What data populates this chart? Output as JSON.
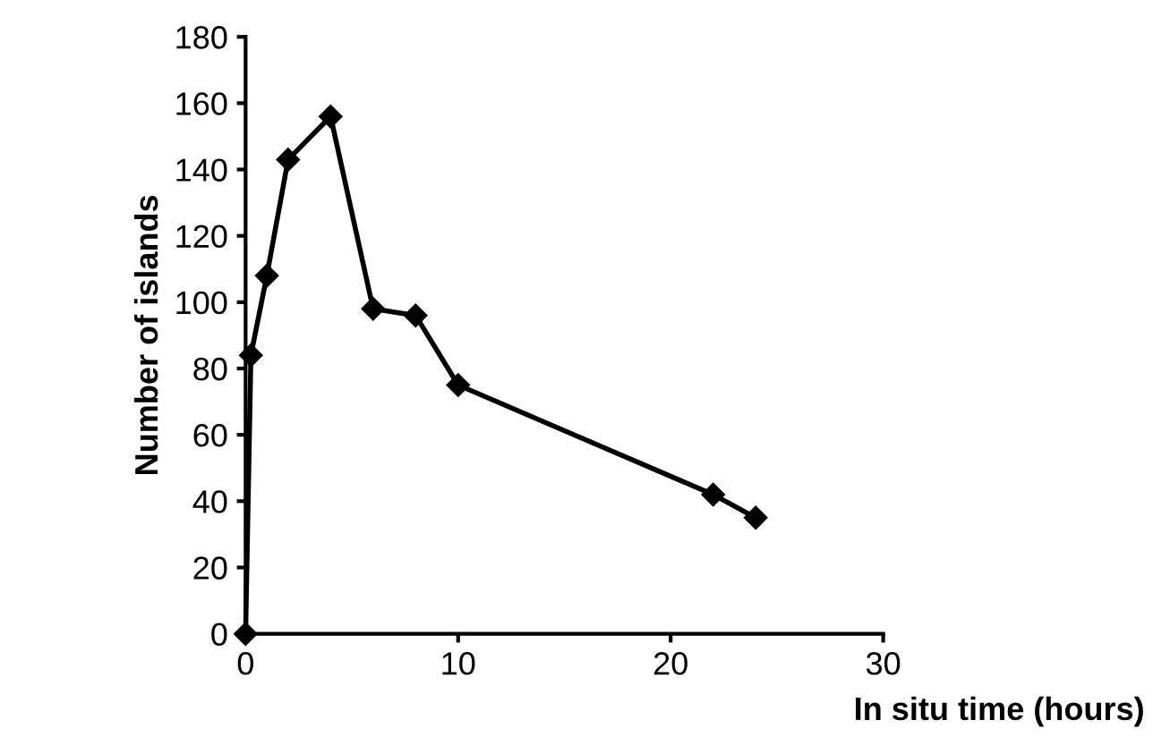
{
  "chart_data": {
    "type": "line",
    "xlabel": "In situ time (hours)",
    "ylabel": "Number of islands",
    "x": [
      0,
      0.25,
      1,
      2,
      4,
      6,
      8,
      10,
      22,
      24
    ],
    "series": [
      {
        "color": "#000000",
        "values": [
          0,
          84,
          108,
          143,
          156,
          98,
          96,
          75,
          42,
          35
        ]
      }
    ],
    "xlim": [
      0,
      30
    ],
    "xticks": [
      0,
      10,
      20,
      30
    ],
    "ylim": [
      0,
      180
    ],
    "yticks": [
      0,
      20,
      40,
      60,
      80,
      100,
      120,
      140,
      160,
      180
    ],
    "marker": "diamond",
    "line_style": "solid",
    "grid": false,
    "legend": false
  }
}
